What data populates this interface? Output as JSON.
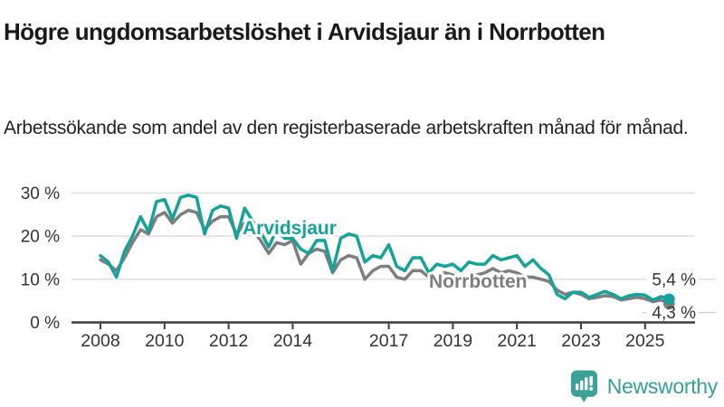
{
  "header": {
    "title": "Högre ungdomsarbetslöshet i Arvidsjaur än i Norrbotten",
    "subtitle": "Arbetssökande som andel av den registerbaserade arbetskraften månad för månad."
  },
  "chart_data": {
    "type": "line",
    "grid": "horizontal",
    "legend_position": "inline-labels-on-lines",
    "ylim": [
      0,
      30
    ],
    "xlim": [
      2008,
      2025.75
    ],
    "yticks": [
      0,
      10,
      20,
      30
    ],
    "ytick_labels": [
      "0 %",
      "10 %",
      "20 %",
      "30 %"
    ],
    "xticks": [
      2008,
      2010,
      2012,
      2014,
      2017,
      2019,
      2021,
      2023,
      2025
    ],
    "xtick_labels": [
      "2008",
      "2010",
      "2012",
      "2014",
      "2017",
      "2019",
      "2021",
      "2023",
      "2025"
    ],
    "x": [
      2008,
      2008.25,
      2008.5,
      2008.75,
      2009,
      2009.25,
      2009.5,
      2009.75,
      2010,
      2010.25,
      2010.5,
      2010.75,
      2011,
      2011.25,
      2011.5,
      2011.75,
      2012,
      2012.25,
      2012.5,
      2012.75,
      2013,
      2013.25,
      2013.5,
      2013.75,
      2014,
      2014.25,
      2014.5,
      2014.75,
      2015,
      2015.25,
      2015.5,
      2015.75,
      2016,
      2016.25,
      2016.5,
      2016.75,
      2017,
      2017.25,
      2017.5,
      2017.75,
      2018,
      2018.25,
      2018.5,
      2018.75,
      2019,
      2019.25,
      2019.5,
      2019.75,
      2020,
      2020.25,
      2020.5,
      2020.75,
      2021,
      2021.25,
      2021.5,
      2021.75,
      2022,
      2022.25,
      2022.5,
      2022.75,
      2023,
      2023.25,
      2023.5,
      2023.75,
      2024,
      2024.25,
      2024.5,
      2024.75,
      2025,
      2025.25,
      2025.5,
      2025.75
    ],
    "series": [
      {
        "name": "Arvidsjaur",
        "color": "#15a399",
        "end_value": 5.4,
        "end_label": "5,4 %",
        "values": [
          15.5,
          14.0,
          10.5,
          16.5,
          20.0,
          24.5,
          21.0,
          28.0,
          28.5,
          24.0,
          29.0,
          29.5,
          29.0,
          20.5,
          26.0,
          27.0,
          26.5,
          19.5,
          26.5,
          23.5,
          21.0,
          17.5,
          21.5,
          19.5,
          19.5,
          17.0,
          16.0,
          19.0,
          19.0,
          12.0,
          19.5,
          20.5,
          20.0,
          14.0,
          15.5,
          15.0,
          18.0,
          13.0,
          12.0,
          15.0,
          15.0,
          11.5,
          13.5,
          13.0,
          13.5,
          12.0,
          14.0,
          13.5,
          13.5,
          15.5,
          14.5,
          15.0,
          15.5,
          13.0,
          14.5,
          12.5,
          11.0,
          6.5,
          5.5,
          7.0,
          7.0,
          5.8,
          6.5,
          7.2,
          6.5,
          5.5,
          6.2,
          6.5,
          6.3,
          5.2,
          6.0,
          5.4
        ]
      },
      {
        "name": "Norrbotten",
        "color": "#7e7e7e",
        "end_value": 4.3,
        "end_label": "4,3 %",
        "values": [
          14.5,
          13.5,
          12.0,
          15.0,
          18.5,
          21.5,
          20.5,
          24.5,
          25.5,
          23.0,
          25.0,
          26.0,
          25.5,
          21.5,
          23.5,
          24.5,
          24.5,
          20.5,
          23.0,
          21.5,
          19.0,
          16.0,
          18.5,
          18.0,
          19.0,
          13.5,
          16.0,
          17.0,
          16.5,
          11.5,
          14.5,
          15.5,
          15.0,
          10.0,
          12.0,
          13.0,
          13.0,
          10.5,
          10.0,
          12.0,
          12.0,
          10.5,
          11.0,
          11.5,
          11.0,
          10.0,
          10.5,
          11.0,
          11.5,
          12.5,
          11.5,
          12.0,
          11.5,
          10.5,
          10.5,
          10.0,
          9.5,
          7.5,
          6.5,
          7.0,
          6.5,
          5.5,
          5.8,
          6.2,
          6.0,
          5.2,
          5.5,
          5.8,
          5.5,
          4.8,
          5.2,
          4.3
        ]
      }
    ],
    "colors": {
      "grid": "#dcdcdc",
      "axis": "#3c3c3c",
      "tick_label": "#333333",
      "annotation_label": "#333333"
    }
  },
  "footer": {
    "brand": "Newsworthy"
  }
}
